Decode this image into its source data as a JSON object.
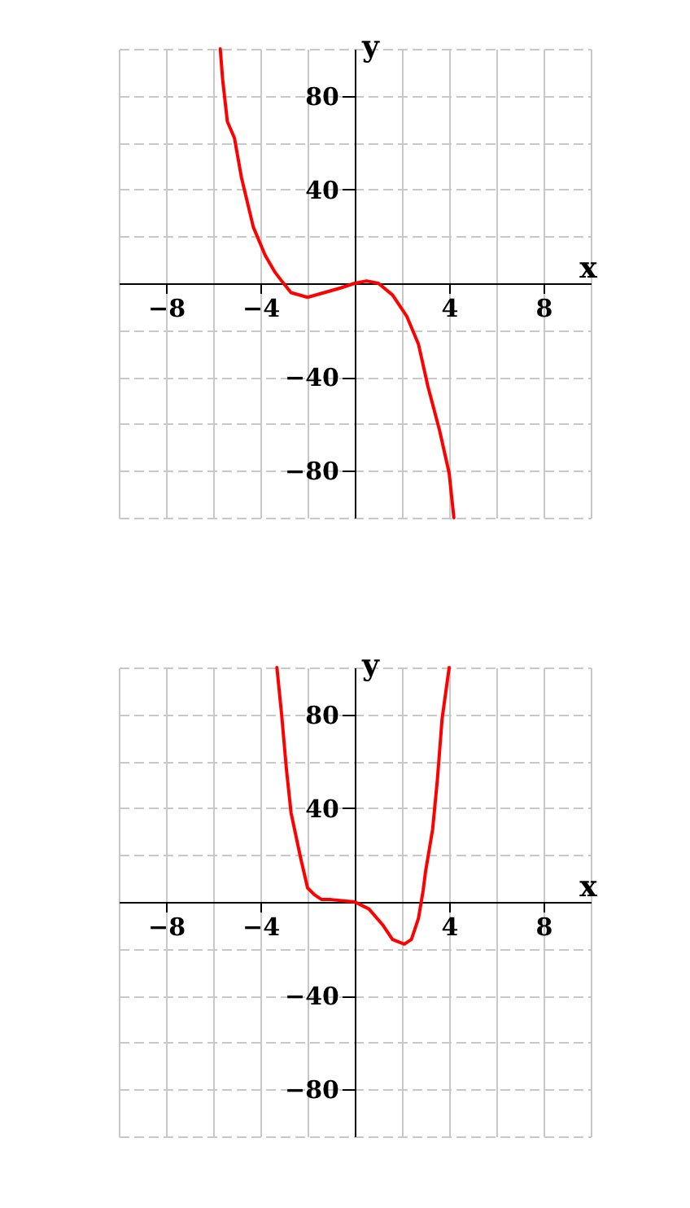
{
  "chart_data": [
    {
      "type": "line",
      "xlabel": "x",
      "ylabel": "y",
      "xlim": [
        -10,
        10
      ],
      "ylim": [
        -100,
        100
      ],
      "xticks": [
        {
          "value": -10,
          "label": null
        },
        -8,
        {
          "value": -6,
          "label": null
        },
        -4,
        {
          "value": -2,
          "label": null
        },
        {
          "value": 2,
          "label": null
        },
        4,
        {
          "value": 6,
          "label": null
        },
        8,
        {
          "value": 10,
          "label": null
        }
      ],
      "yticks": [
        {
          "value": -100,
          "label": null
        },
        -80,
        {
          "value": -60,
          "label": null
        },
        -40,
        {
          "value": -20,
          "label": null
        },
        {
          "value": 20,
          "label": null
        },
        40,
        {
          "value": 60,
          "label": null
        },
        80,
        {
          "value": 100,
          "label": null
        }
      ],
      "grid": true,
      "series": [
        {
          "color": "#ff0000",
          "x": [
            -5.7,
            -5.6,
            -5.4,
            -5.1,
            -4.8,
            -4.3,
            -3.8,
            -3.4,
            -3.1,
            -2.7,
            -2.0,
            -1.3,
            -0.6,
            0,
            0.5,
            1.0,
            1.6,
            2.2,
            2.7,
            3.1,
            3.6,
            4.0,
            4.2
          ],
          "values": [
            100,
            87,
            69,
            62,
            45,
            24,
            12,
            5,
            1,
            -4,
            -6,
            -4,
            -2,
            0,
            1,
            0,
            -5,
            -14,
            -26,
            -44,
            -63,
            -81,
            -100
          ]
        }
      ]
    },
    {
      "type": "line",
      "xlabel": "x",
      "ylabel": "y",
      "xlim": [
        -10,
        10
      ],
      "ylim": [
        -100,
        100
      ],
      "xticks": [
        {
          "value": -10,
          "label": null
        },
        -8,
        {
          "value": -6,
          "label": null
        },
        -4,
        {
          "value": -2,
          "label": null
        },
        {
          "value": 2,
          "label": null
        },
        4,
        {
          "value": 6,
          "label": null
        },
        8,
        {
          "value": 10,
          "label": null
        }
      ],
      "yticks": [
        {
          "value": -100,
          "label": null
        },
        -80,
        {
          "value": -60,
          "label": null
        },
        -40,
        {
          "value": -20,
          "label": null
        },
        {
          "value": 20,
          "label": null
        },
        40,
        {
          "value": 60,
          "label": null
        },
        80,
        {
          "value": 100,
          "label": null
        }
      ],
      "grid": true,
      "series": [
        {
          "color": "#ff0000",
          "x": [
            -3.3,
            -3.1,
            -2.9,
            -2.7,
            -2.3,
            -2.0,
            -1.7,
            -1.4,
            -1.0,
            0,
            0.6,
            1.2,
            1.6,
            2.1,
            2.4,
            2.7,
            2.9,
            3.0,
            3.3,
            3.5,
            3.7,
            4.0
          ],
          "values": [
            100,
            80,
            57,
            38,
            19,
            6,
            3,
            1,
            1,
            0,
            -3,
            -10,
            -16,
            -18,
            -16,
            -7,
            5,
            13,
            31,
            52,
            78,
            100
          ]
        }
      ]
    }
  ]
}
